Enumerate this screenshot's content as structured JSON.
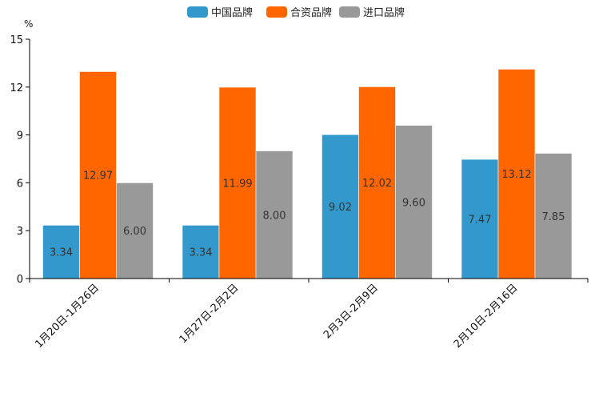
{
  "chart_data": {
    "type": "bar",
    "unit_label": "%",
    "categories": [
      "1月20日-1月26日",
      "1月27日-2月2日",
      "2月3日-2月9日",
      "2月10日-2月16日"
    ],
    "series": [
      {
        "name": "中国品牌",
        "color": "#3399cc",
        "values": [
          3.34,
          3.34,
          9.02,
          7.47
        ],
        "labels": [
          "3.34",
          "3.34",
          "9.02",
          "7.47"
        ]
      },
      {
        "name": "合资品牌",
        "color": "#ff6600",
        "values": [
          12.97,
          11.99,
          12.02,
          13.12
        ],
        "labels": [
          "12.97",
          "11.99",
          "12.02",
          "13.12"
        ]
      },
      {
        "name": "进口品牌",
        "color": "#999999",
        "values": [
          6.0,
          8.0,
          9.6,
          7.85
        ],
        "labels": [
          "6.00",
          "8.00",
          "9.60",
          "7.85"
        ]
      }
    ],
    "yticks": [
      0,
      3,
      6,
      9,
      12,
      15
    ],
    "ylim": [
      0,
      15
    ],
    "legend_position": "top-center",
    "grid": false
  }
}
